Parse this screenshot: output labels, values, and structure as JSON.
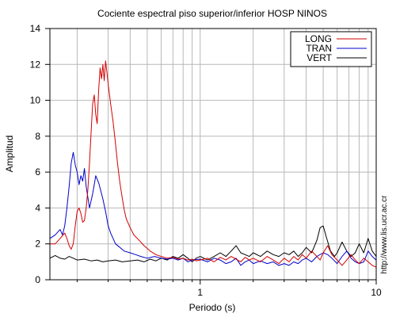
{
  "watermark": "http://www.lis.ucr.ac.cr",
  "chart_data": {
    "type": "line",
    "title": "Cociente espectral piso superior/inferior  HOSP NINOS",
    "xlabel": "Periodo (s)",
    "ylabel": "Amplitud",
    "xscale": "log",
    "xlim": [
      0.14,
      10
    ],
    "ylim": [
      0,
      14
    ],
    "xtick_labels": [
      {
        "value": 1,
        "label": "1"
      },
      {
        "value": 10,
        "label": "10"
      }
    ],
    "ytick_labels": [
      {
        "value": 0,
        "label": "0"
      },
      {
        "value": 2,
        "label": "2"
      },
      {
        "value": 4,
        "label": "4"
      },
      {
        "value": 6,
        "label": "6"
      },
      {
        "value": 8,
        "label": "8"
      },
      {
        "value": 10,
        "label": "10"
      },
      {
        "value": 12,
        "label": "12"
      },
      {
        "value": 14,
        "label": "14"
      }
    ],
    "grid": true,
    "legend": "top-right",
    "series": [
      {
        "name": "LONG",
        "color": "#d40000",
        "points": [
          [
            0.14,
            2.0
          ],
          [
            0.15,
            2.0
          ],
          [
            0.16,
            2.3
          ],
          [
            0.17,
            2.6
          ],
          [
            0.175,
            2.3
          ],
          [
            0.18,
            1.9
          ],
          [
            0.185,
            1.7
          ],
          [
            0.19,
            2.0
          ],
          [
            0.195,
            3.0
          ],
          [
            0.2,
            3.8
          ],
          [
            0.205,
            4.0
          ],
          [
            0.21,
            3.7
          ],
          [
            0.215,
            3.2
          ],
          [
            0.22,
            3.3
          ],
          [
            0.225,
            4.0
          ],
          [
            0.23,
            5.0
          ],
          [
            0.235,
            6.5
          ],
          [
            0.24,
            8.2
          ],
          [
            0.245,
            9.8
          ],
          [
            0.25,
            10.3
          ],
          [
            0.255,
            9.2
          ],
          [
            0.26,
            8.7
          ],
          [
            0.265,
            10.6
          ],
          [
            0.27,
            11.8
          ],
          [
            0.275,
            11.2
          ],
          [
            0.28,
            12.0
          ],
          [
            0.285,
            11.1
          ],
          [
            0.29,
            12.2
          ],
          [
            0.295,
            11.6
          ],
          [
            0.3,
            10.9
          ],
          [
            0.31,
            9.8
          ],
          [
            0.32,
            8.8
          ],
          [
            0.33,
            7.6
          ],
          [
            0.34,
            6.4
          ],
          [
            0.35,
            5.4
          ],
          [
            0.36,
            4.6
          ],
          [
            0.37,
            3.9
          ],
          [
            0.38,
            3.4
          ],
          [
            0.4,
            2.9
          ],
          [
            0.42,
            2.5
          ],
          [
            0.45,
            2.2
          ],
          [
            0.48,
            1.9
          ],
          [
            0.52,
            1.6
          ],
          [
            0.56,
            1.4
          ],
          [
            0.6,
            1.3
          ],
          [
            0.65,
            1.2
          ],
          [
            0.7,
            1.25
          ],
          [
            0.75,
            1.15
          ],
          [
            0.8,
            1.2
          ],
          [
            0.85,
            1.1
          ],
          [
            0.9,
            1.15
          ],
          [
            0.95,
            1.05
          ],
          [
            1.0,
            1.1
          ],
          [
            1.1,
            1.2
          ],
          [
            1.2,
            1.0
          ],
          [
            1.3,
            1.25
          ],
          [
            1.4,
            1.1
          ],
          [
            1.5,
            1.3
          ],
          [
            1.6,
            1.15
          ],
          [
            1.7,
            1.0
          ],
          [
            1.8,
            1.25
          ],
          [
            1.9,
            1.1
          ],
          [
            2.0,
            1.2
          ],
          [
            2.2,
            1.0
          ],
          [
            2.4,
            1.3
          ],
          [
            2.6,
            1.1
          ],
          [
            2.8,
            0.9
          ],
          [
            3.0,
            1.2
          ],
          [
            3.2,
            1.0
          ],
          [
            3.4,
            1.3
          ],
          [
            3.6,
            1.1
          ],
          [
            3.8,
            1.4
          ],
          [
            4.0,
            1.2
          ],
          [
            4.3,
            1.6
          ],
          [
            4.6,
            1.3
          ],
          [
            4.8,
            1.1
          ],
          [
            5.0,
            1.5
          ],
          [
            5.3,
            1.9
          ],
          [
            5.6,
            1.4
          ],
          [
            6.0,
            1.1
          ],
          [
            6.4,
            0.8
          ],
          [
            6.8,
            1.1
          ],
          [
            7.2,
            1.4
          ],
          [
            7.6,
            1.1
          ],
          [
            8.0,
            0.9
          ],
          [
            8.5,
            1.2
          ],
          [
            9.0,
            1.0
          ],
          [
            9.5,
            0.8
          ],
          [
            10.0,
            0.7
          ]
        ]
      },
      {
        "name": "TRAN",
        "color": "#0000cc",
        "points": [
          [
            0.14,
            2.3
          ],
          [
            0.15,
            2.5
          ],
          [
            0.16,
            2.8
          ],
          [
            0.165,
            2.5
          ],
          [
            0.17,
            3.0
          ],
          [
            0.175,
            4.0
          ],
          [
            0.18,
            5.2
          ],
          [
            0.185,
            6.5
          ],
          [
            0.19,
            7.1
          ],
          [
            0.195,
            6.4
          ],
          [
            0.2,
            6.0
          ],
          [
            0.205,
            5.3
          ],
          [
            0.21,
            5.8
          ],
          [
            0.215,
            5.5
          ],
          [
            0.22,
            6.2
          ],
          [
            0.225,
            5.2
          ],
          [
            0.23,
            4.6
          ],
          [
            0.235,
            4.0
          ],
          [
            0.24,
            4.4
          ],
          [
            0.245,
            4.8
          ],
          [
            0.25,
            5.3
          ],
          [
            0.255,
            5.8
          ],
          [
            0.26,
            5.6
          ],
          [
            0.265,
            5.4
          ],
          [
            0.27,
            5.1
          ],
          [
            0.28,
            4.5
          ],
          [
            0.29,
            3.8
          ],
          [
            0.3,
            3.0
          ],
          [
            0.31,
            2.6
          ],
          [
            0.32,
            2.3
          ],
          [
            0.33,
            2.0
          ],
          [
            0.35,
            1.8
          ],
          [
            0.37,
            1.6
          ],
          [
            0.4,
            1.5
          ],
          [
            0.43,
            1.4
          ],
          [
            0.46,
            1.3
          ],
          [
            0.5,
            1.2
          ],
          [
            0.55,
            1.3
          ],
          [
            0.6,
            1.2
          ],
          [
            0.65,
            1.15
          ],
          [
            0.7,
            1.2
          ],
          [
            0.75,
            1.1
          ],
          [
            0.8,
            1.2
          ],
          [
            0.85,
            1.0
          ],
          [
            0.9,
            1.1
          ],
          [
            1.0,
            1.15
          ],
          [
            1.1,
            1.0
          ],
          [
            1.2,
            1.2
          ],
          [
            1.3,
            1.1
          ],
          [
            1.4,
            0.9
          ],
          [
            1.5,
            1.0
          ],
          [
            1.6,
            1.2
          ],
          [
            1.7,
            0.8
          ],
          [
            1.8,
            1.0
          ],
          [
            1.9,
            1.1
          ],
          [
            2.0,
            0.9
          ],
          [
            2.2,
            1.05
          ],
          [
            2.4,
            0.9
          ],
          [
            2.6,
            1.0
          ],
          [
            2.8,
            0.8
          ],
          [
            3.0,
            0.9
          ],
          [
            3.2,
            0.8
          ],
          [
            3.4,
            1.0
          ],
          [
            3.6,
            0.9
          ],
          [
            3.8,
            1.1
          ],
          [
            4.0,
            1.2
          ],
          [
            4.3,
            1.0
          ],
          [
            4.6,
            1.3
          ],
          [
            5.0,
            1.5
          ],
          [
            5.3,
            1.4
          ],
          [
            5.6,
            1.2
          ],
          [
            6.0,
            0.9
          ],
          [
            6.4,
            1.3
          ],
          [
            6.8,
            1.6
          ],
          [
            7.2,
            1.2
          ],
          [
            7.6,
            1.0
          ],
          [
            8.0,
            0.9
          ],
          [
            8.5,
            1.0
          ],
          [
            9.0,
            1.6
          ],
          [
            9.5,
            1.3
          ],
          [
            10.0,
            1.1
          ]
        ]
      },
      {
        "name": "VERT",
        "color": "#000000",
        "points": [
          [
            0.14,
            1.2
          ],
          [
            0.15,
            1.35
          ],
          [
            0.16,
            1.2
          ],
          [
            0.17,
            1.15
          ],
          [
            0.18,
            1.3
          ],
          [
            0.19,
            1.2
          ],
          [
            0.2,
            1.1
          ],
          [
            0.22,
            1.15
          ],
          [
            0.24,
            1.05
          ],
          [
            0.26,
            1.1
          ],
          [
            0.28,
            1.0
          ],
          [
            0.3,
            1.05
          ],
          [
            0.33,
            1.1
          ],
          [
            0.36,
            1.0
          ],
          [
            0.4,
            1.05
          ],
          [
            0.44,
            1.1
          ],
          [
            0.48,
            1.0
          ],
          [
            0.52,
            1.15
          ],
          [
            0.56,
            1.05
          ],
          [
            0.6,
            1.2
          ],
          [
            0.65,
            1.1
          ],
          [
            0.7,
            1.3
          ],
          [
            0.75,
            1.2
          ],
          [
            0.8,
            1.4
          ],
          [
            0.85,
            1.2
          ],
          [
            0.9,
            1.0
          ],
          [
            0.95,
            1.2
          ],
          [
            1.0,
            1.3
          ],
          [
            1.1,
            1.1
          ],
          [
            1.2,
            1.3
          ],
          [
            1.3,
            1.5
          ],
          [
            1.4,
            1.3
          ],
          [
            1.5,
            1.6
          ],
          [
            1.6,
            1.9
          ],
          [
            1.7,
            1.5
          ],
          [
            1.8,
            1.4
          ],
          [
            1.9,
            1.3
          ],
          [
            2.0,
            1.5
          ],
          [
            2.2,
            1.3
          ],
          [
            2.4,
            1.6
          ],
          [
            2.6,
            1.4
          ],
          [
            2.8,
            1.3
          ],
          [
            3.0,
            1.5
          ],
          [
            3.2,
            1.4
          ],
          [
            3.4,
            1.6
          ],
          [
            3.6,
            1.3
          ],
          [
            3.8,
            1.5
          ],
          [
            4.0,
            1.8
          ],
          [
            4.3,
            1.5
          ],
          [
            4.6,
            2.2
          ],
          [
            4.8,
            2.9
          ],
          [
            5.0,
            3.0
          ],
          [
            5.2,
            2.4
          ],
          [
            5.5,
            1.6
          ],
          [
            5.8,
            1.3
          ],
          [
            6.0,
            1.5
          ],
          [
            6.4,
            2.1
          ],
          [
            6.8,
            1.6
          ],
          [
            7.2,
            1.3
          ],
          [
            7.6,
            1.5
          ],
          [
            8.0,
            2.0
          ],
          [
            8.5,
            1.5
          ],
          [
            9.0,
            2.3
          ],
          [
            9.5,
            1.6
          ],
          [
            10.0,
            1.3
          ]
        ]
      }
    ]
  }
}
